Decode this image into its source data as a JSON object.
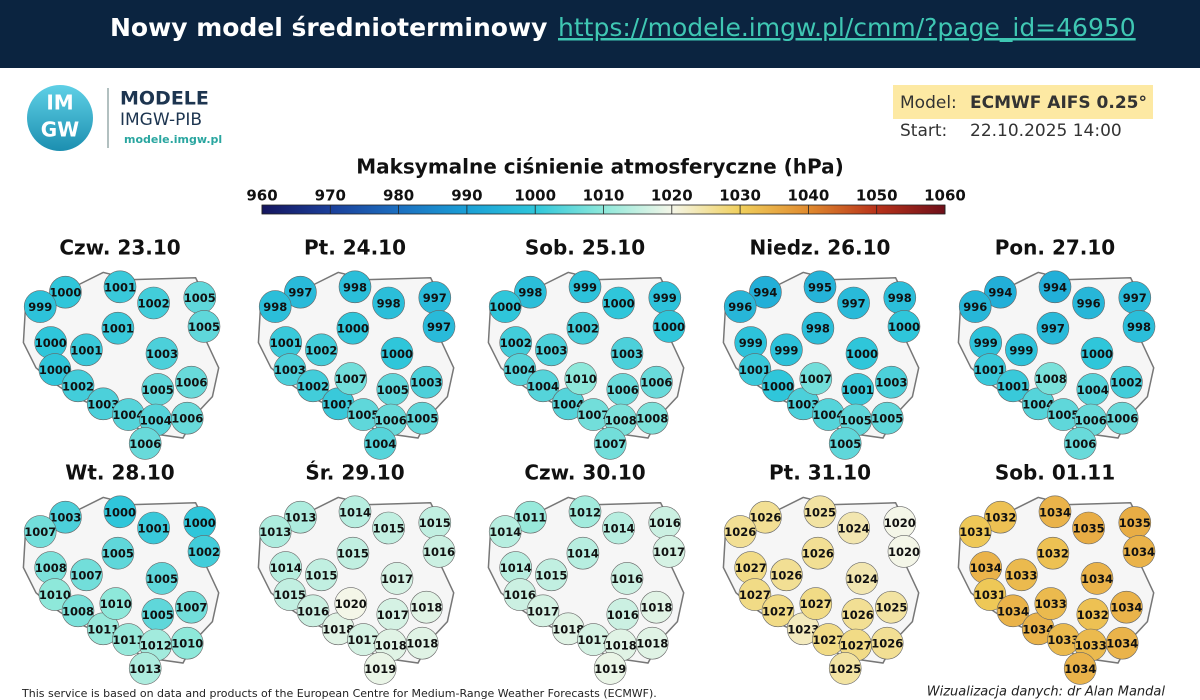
{
  "header": {
    "title": "Nowy model średnioterminowy",
    "url": "https://modele.imgw.pl/cmm/?page_id=46950"
  },
  "logo": {
    "mark": [
      "IM",
      "GW"
    ],
    "name": "MODELE",
    "org": "IMGW-PIB",
    "site": "modele.imgw.pl"
  },
  "model": {
    "label": "Model:",
    "value": "ECMWF AIFS 0.25°"
  },
  "start": {
    "label": "Start:",
    "value": "22.10.2025 14:00"
  },
  "legend": {
    "title": "Maksymalne ciśnienie atmosferyczne (hPa)",
    "ticks": [
      960,
      970,
      980,
      990,
      1000,
      1010,
      1020,
      1030,
      1040,
      1050,
      1060
    ],
    "colors": [
      "#15155e",
      "#1b3f9a",
      "#1c6fc0",
      "#1a9fd6",
      "#2fc6da",
      "#8ee8da",
      "#f4f6e8",
      "#f0cf5c",
      "#e08a2e",
      "#b8321a",
      "#6e0f1a"
    ]
  },
  "maps": [
    {
      "title": "Czw. 23.10",
      "values": [
        1000,
        1001,
        999,
        1002,
        1005,
        1005,
        1000,
        1001,
        1001,
        1003,
        1000,
        1002,
        1005,
        1006,
        1003,
        1004,
        1004,
        1006,
        1006
      ]
    },
    {
      "title": "Pt. 24.10",
      "values": [
        997,
        998,
        998,
        998,
        997,
        997,
        1001,
        1000,
        1002,
        1000,
        1003,
        1002,
        1005,
        1003,
        1001,
        1005,
        1006,
        1005,
        1004,
        1007
      ]
    },
    {
      "title": "Sob. 25.10",
      "values": [
        998,
        999,
        1000,
        1000,
        999,
        1000,
        1002,
        1002,
        1003,
        1003,
        1004,
        1004,
        1006,
        1006,
        1004,
        1007,
        1008,
        1008,
        1007,
        1010
      ]
    },
    {
      "title": "Niedz. 26.10",
      "values": [
        994,
        995,
        996,
        997,
        998,
        1000,
        999,
        998,
        999,
        1000,
        1001,
        1000,
        1001,
        1003,
        1003,
        1004,
        1005,
        1005,
        1005,
        1007
      ]
    },
    {
      "title": "Pon. 27.10",
      "values": [
        994,
        994,
        996,
        996,
        997,
        998,
        999,
        997,
        999,
        1000,
        1001,
        1001,
        1004,
        1002,
        1004,
        1005,
        1006,
        1006,
        1006,
        1008
      ]
    },
    {
      "title": "Wt. 28.10",
      "values": [
        1003,
        1000,
        1007,
        1001,
        1000,
        1002,
        1008,
        1005,
        1007,
        1005,
        1010,
        1008,
        1005,
        1007,
        1011,
        1011,
        1012,
        1010,
        1013,
        1010
      ]
    },
    {
      "title": "Śr. 29.10",
      "values": [
        1013,
        1014,
        1013,
        1015,
        1015,
        1016,
        1014,
        1015,
        1015,
        1017,
        1015,
        1016,
        1017,
        1018,
        1018,
        1017,
        1018,
        1018,
        1019,
        1020
      ]
    },
    {
      "title": "Czw. 30.10",
      "values": [
        1011,
        1012,
        1014,
        1014,
        1016,
        1017,
        1014,
        1014,
        1015,
        1016,
        1016,
        1017,
        1016,
        1018,
        1018,
        1017,
        1018,
        1018,
        1019
      ]
    },
    {
      "title": "Pt. 31.10",
      "values": [
        1026,
        1025,
        1026,
        1024,
        1020,
        1020,
        1027,
        1026,
        1026,
        1024,
        1027,
        1027,
        1026,
        1025,
        1023,
        1027,
        1027,
        1026,
        1025,
        1027
      ]
    },
    {
      "title": "Sob. 01.11",
      "values": [
        1032,
        1034,
        1031,
        1035,
        1035,
        1034,
        1034,
        1032,
        1033,
        1034,
        1031,
        1034,
        1032,
        1034,
        1034,
        1033,
        1033,
        1034,
        1034,
        1033
      ]
    }
  ],
  "footer": {
    "credit": "This service is based on data and products of the European Centre for Medium-Range Weather Forecasts (ECMWF).",
    "author": "Wizualizacja danych: dr Alan Mandal"
  }
}
